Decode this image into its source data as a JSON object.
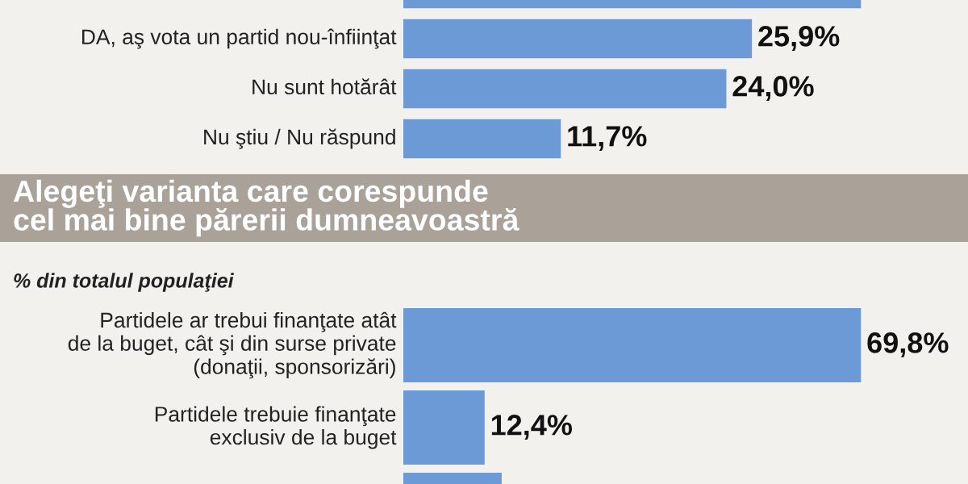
{
  "chart_data": [
    {
      "type": "bar",
      "orientation": "horizontal",
      "categories": [
        null,
        "DA, aş vota un partid nou-înfiinţat",
        "Nu sunt hotărât",
        "Nu ştiu / Nu răspund"
      ],
      "values": [
        34.0,
        25.9,
        24.0,
        11.7
      ],
      "value_labels": [
        null,
        "25,9%",
        "24,0%",
        "11,7%"
      ],
      "color": "#6b9ad6"
    },
    {
      "type": "bar",
      "orientation": "horizontal",
      "title": "Alegeţi varianta care corespunde\ncel mai bine părerii dumneavoastră",
      "subtitle": "% din totalul populaţiei",
      "categories": [
        "Partidele ar trebui finanţate atât\nde la buget, cât şi din surse private\n(donaţii, sponsorizări)",
        "Partidele trebuie finanţate\nexclusiv de la buget",
        null
      ],
      "values": [
        69.8,
        12.4,
        15.0
      ],
      "value_labels": [
        "69,8%",
        "12,4%",
        null
      ],
      "color": "#6b9ad6"
    }
  ]
}
